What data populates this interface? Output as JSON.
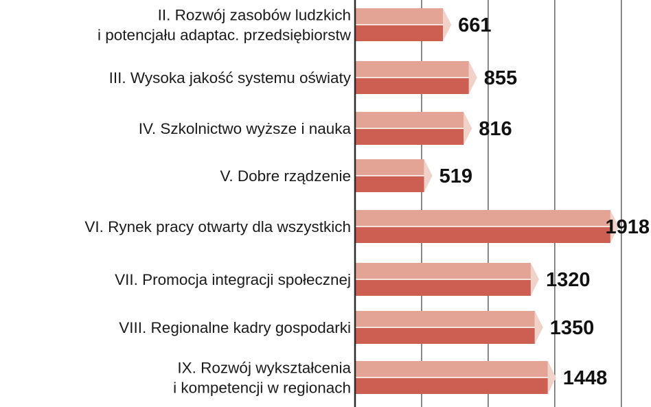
{
  "chart_data": {
    "type": "bar",
    "orientation": "horizontal",
    "categories": [
      [
        "II. Rozwój zasobów ludzkich",
        "i potencjału adaptac. przedsiębiorstw"
      ],
      [
        "III. Wysoka jakość systemu oświaty"
      ],
      [
        "IV. Szkolnictwo wyższe i nauka"
      ],
      [
        "V. Dobre rządzenie"
      ],
      [
        "VI. Rynek pracy otwarty dla wszystkich"
      ],
      [
        "VII. Promocja integracji społecznej"
      ],
      [
        "VIII. Regionalne kadry gospodarki"
      ],
      [
        "IX. Rozwój wykształcenia",
        "i kompetencji w regionach"
      ]
    ],
    "values": [
      661,
      855,
      816,
      519,
      1918,
      1320,
      1350,
      1448
    ],
    "value_labels": [
      "661",
      "855",
      "816",
      "519",
      "1918",
      "1320",
      "1350",
      "1448"
    ],
    "xlim": [
      0,
      2000
    ],
    "grid": true,
    "gridline_values": [
      500,
      1000,
      1500,
      2000
    ],
    "colors": {
      "bar_top": "#e3a496",
      "bar_bottom": "#cc5e52",
      "bar_divider": "#f5e3dd",
      "bar_tip": "#f1d2c8",
      "axis": "#2a2a2a",
      "grid": "#555555"
    }
  }
}
